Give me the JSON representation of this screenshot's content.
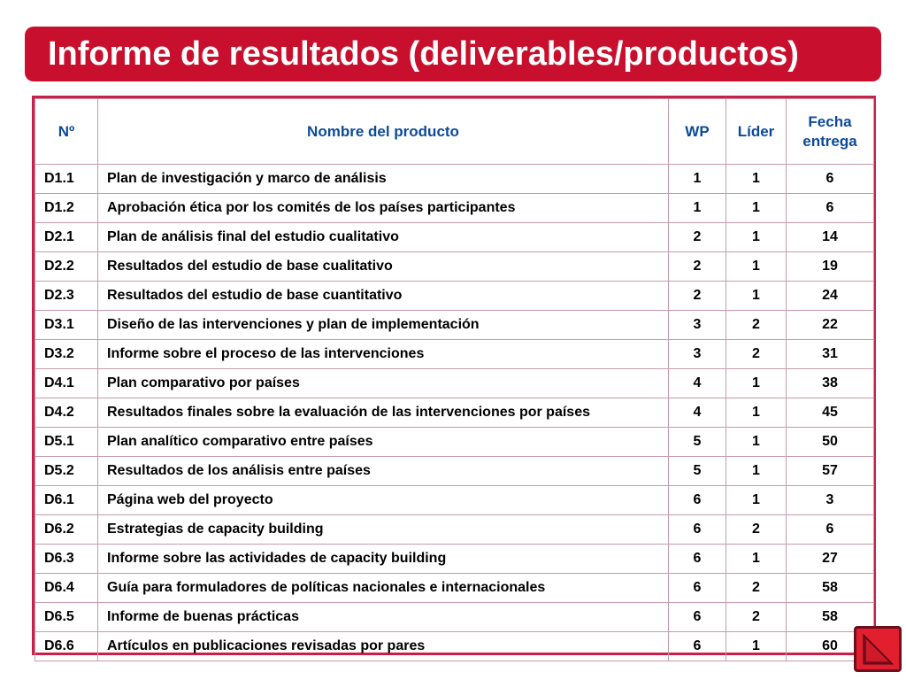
{
  "title": "Informe de resultados (deliverables/productos)",
  "table": {
    "headers": {
      "num": "Nº",
      "name": "Nombre del producto",
      "wp": "WP",
      "leader": "Líder",
      "date": "Fecha entrega"
    },
    "rows": [
      {
        "id": "D1.1",
        "name": "Plan de investigación y marco de análisis",
        "wp": "1",
        "leader": "1",
        "date": "6"
      },
      {
        "id": "D1.2",
        "name": "Aprobación ética por los comités de los países participantes",
        "wp": "1",
        "leader": "1",
        "date": "6"
      },
      {
        "id": "D2.1",
        "name": "Plan de análisis final del estudio cualitativo",
        "wp": "2",
        "leader": "1",
        "date": "14"
      },
      {
        "id": "D2.2",
        "name": "Resultados del estudio de base cualitativo",
        "wp": "2",
        "leader": "1",
        "date": "19"
      },
      {
        "id": "D2.3",
        "name": "Resultados del estudio de base cuantitativo",
        "wp": "2",
        "leader": "1",
        "date": "24"
      },
      {
        "id": "D3.1",
        "name": "Diseño de las intervenciones y plan de implementación",
        "wp": "3",
        "leader": "2",
        "date": "22"
      },
      {
        "id": "D3.2",
        "name": "Informe sobre el proceso de las intervenciones",
        "wp": "3",
        "leader": "2",
        "date": "31"
      },
      {
        "id": "D4.1",
        "name": "Plan comparativo por países",
        "wp": "4",
        "leader": "1",
        "date": "38"
      },
      {
        "id": "D4.2",
        "name": "Resultados finales sobre la evaluación de las intervenciones por países",
        "wp": "4",
        "leader": "1",
        "date": "45"
      },
      {
        "id": "D5.1",
        "name": "Plan analítico comparativo entre países",
        "wp": "5",
        "leader": "1",
        "date": "50"
      },
      {
        "id": "D5.2",
        "name": "Resultados de los análisis entre países",
        "wp": "5",
        "leader": "1",
        "date": "57"
      },
      {
        "id": "D6.1",
        "name": "Página web del proyecto",
        "wp": "6",
        "leader": "1",
        "date": "3"
      },
      {
        "id": "D6.2",
        "name": "Estrategias de capacity building",
        "wp": "6",
        "leader": "2",
        "date": "6"
      },
      {
        "id": "D6.3",
        "name": "Informe sobre las actividades de capacity building",
        "wp": "6",
        "leader": "1",
        "date": "27"
      },
      {
        "id": "D6.4",
        "name": "Guía para formuladores de políticas nacionales e internacionales",
        "wp": "6",
        "leader": "2",
        "date": "58"
      },
      {
        "id": "D6.5",
        "name": "Informe de buenas prácticas",
        "wp": "6",
        "leader": "2",
        "date": "58"
      },
      {
        "id": "D6.6",
        "name": "Artículos en publicaciones revisadas por pares",
        "wp": "6",
        "leader": "1",
        "date": "60"
      }
    ]
  },
  "colors": {
    "accent": "#c8102e",
    "header_text": "#0b4a9a",
    "table_border": "#c8204a"
  },
  "nav": {
    "icon": "triangle-back-icon"
  }
}
